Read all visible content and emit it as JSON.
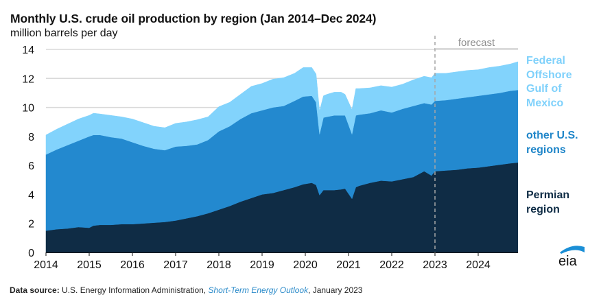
{
  "chart_data": {
    "type": "area",
    "stacked": true,
    "title": "Monthly U.S. crude oil production by region (Jan 2014–Dec 2024)",
    "subtitle": "million barrels per day",
    "xlabel": "",
    "ylabel": "million barrels per day",
    "ylim": [
      0,
      14
    ],
    "yticks": [
      "0",
      "2",
      "4",
      "6",
      "8",
      "10",
      "12",
      "14"
    ],
    "xlim": [
      2014.0,
      2024.917
    ],
    "xticks": [
      "2014",
      "2015",
      "2016",
      "2017",
      "2018",
      "2019",
      "2020",
      "2021",
      "2022",
      "2023",
      "2024"
    ],
    "grid": "horizontal",
    "forecast_start": 2023.0,
    "forecast_label": "forecast",
    "legend_placement": "right",
    "x": [
      2014.0,
      2014.25,
      2014.5,
      2014.75,
      2015.0,
      2015.1,
      2015.25,
      2015.5,
      2015.75,
      2016.0,
      2016.25,
      2016.5,
      2016.75,
      2017.0,
      2017.25,
      2017.5,
      2017.75,
      2018.0,
      2018.25,
      2018.5,
      2018.75,
      2019.0,
      2019.25,
      2019.5,
      2019.75,
      2019.95,
      2020.15,
      2020.25,
      2020.33,
      2020.42,
      2020.5,
      2020.67,
      2020.83,
      2020.92,
      2021.08,
      2021.17,
      2021.25,
      2021.5,
      2021.75,
      2022.0,
      2022.25,
      2022.5,
      2022.75,
      2022.92,
      2023.0,
      2023.25,
      2023.5,
      2023.75,
      2024.0,
      2024.25,
      2024.5,
      2024.75,
      2024.917
    ],
    "series": [
      {
        "name": "Permian region",
        "color": "#0f2c45",
        "values": [
          1.5,
          1.6,
          1.65,
          1.75,
          1.7,
          1.85,
          1.9,
          1.9,
          1.95,
          1.95,
          2.0,
          2.05,
          2.1,
          2.2,
          2.35,
          2.5,
          2.7,
          2.95,
          3.2,
          3.5,
          3.75,
          4.0,
          4.1,
          4.3,
          4.5,
          4.7,
          4.8,
          4.65,
          3.95,
          4.3,
          4.3,
          4.3,
          4.35,
          4.4,
          3.7,
          4.5,
          4.6,
          4.8,
          4.95,
          4.9,
          5.05,
          5.2,
          5.6,
          5.3,
          5.6,
          5.65,
          5.7,
          5.8,
          5.85,
          5.95,
          6.05,
          6.15,
          6.2
        ]
      },
      {
        "name": "other U.S. regions",
        "color": "#2389cf",
        "values": [
          5.25,
          5.5,
          5.75,
          5.95,
          6.3,
          6.25,
          6.2,
          6.05,
          5.9,
          5.65,
          5.35,
          5.1,
          4.95,
          5.1,
          5.0,
          4.95,
          5.05,
          5.4,
          5.5,
          5.7,
          5.85,
          5.8,
          5.9,
          5.8,
          5.95,
          6.05,
          6.0,
          5.7,
          4.2,
          5.0,
          5.05,
          5.15,
          5.1,
          5.05,
          4.45,
          4.95,
          4.9,
          4.8,
          4.85,
          4.75,
          4.85,
          4.9,
          4.7,
          4.9,
          4.85,
          4.85,
          4.9,
          4.9,
          4.95,
          4.95,
          4.95,
          5.0,
          5.0
        ]
      },
      {
        "name": "Federal Offshore Gulf of Mexico",
        "color": "#82d3fc",
        "values": [
          1.35,
          1.4,
          1.45,
          1.5,
          1.45,
          1.5,
          1.45,
          1.5,
          1.5,
          1.6,
          1.6,
          1.55,
          1.55,
          1.6,
          1.65,
          1.7,
          1.6,
          1.7,
          1.65,
          1.7,
          1.85,
          1.85,
          1.95,
          1.95,
          1.9,
          2.0,
          1.95,
          1.95,
          1.6,
          1.5,
          1.55,
          1.6,
          1.6,
          1.45,
          1.7,
          1.85,
          1.8,
          1.75,
          1.7,
          1.75,
          1.7,
          1.8,
          1.85,
          1.85,
          1.9,
          1.85,
          1.85,
          1.85,
          1.8,
          1.85,
          1.85,
          1.85,
          1.95
        ]
      }
    ]
  },
  "legend": {
    "gulf": [
      "Federal",
      "Offshore",
      "Gulf of",
      "Mexico"
    ],
    "other": [
      "other U.S.",
      "regions"
    ],
    "permian": [
      "Permian",
      "region"
    ]
  },
  "source": {
    "label": "Data source:",
    "text1": " U.S. Energy Information Administration, ",
    "link": "Short-Term Energy Outlook",
    "text2": ", January 2023"
  },
  "logo": {
    "text": "eia",
    "arc_color": "#1b8fd6"
  }
}
